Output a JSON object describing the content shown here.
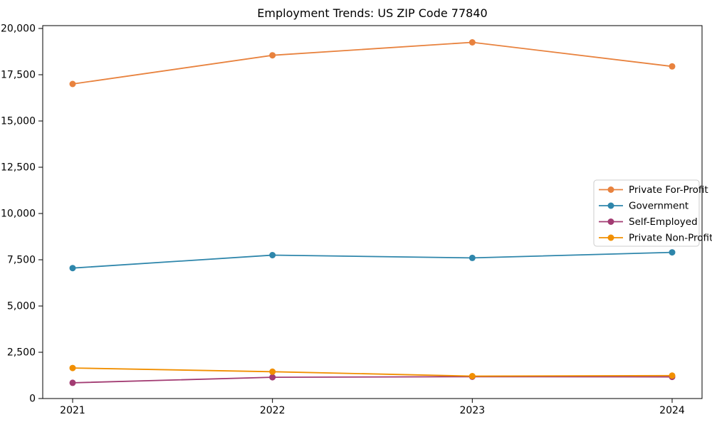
{
  "chart_data": {
    "type": "line",
    "title": "Employment Trends: US ZIP Code 77840",
    "x": [
      2021,
      2022,
      2023,
      2024
    ],
    "xtick_labels": [
      "2021",
      "2022",
      "2023",
      "2024"
    ],
    "yticks": [
      0,
      2500,
      5000,
      7500,
      10000,
      12500,
      15000,
      17500,
      20000
    ],
    "ytick_labels": [
      "0",
      "2,500",
      "5,000",
      "7,500",
      "10,000",
      "12,500",
      "15,000",
      "17,500",
      "20,000"
    ],
    "ylim": [
      0,
      20000
    ],
    "xlabel": "",
    "ylabel": "",
    "grid": false,
    "legend_position": "center right",
    "series": [
      {
        "name": "Private For-Profit",
        "color": "#E8823E",
        "values": [
          17000,
          18550,
          19250,
          17950
        ]
      },
      {
        "name": "Government",
        "color": "#2E86AB",
        "values": [
          7050,
          7750,
          7600,
          7900
        ]
      },
      {
        "name": "Self-Employed",
        "color": "#A23B72",
        "values": [
          850,
          1150,
          1180,
          1170
        ]
      },
      {
        "name": "Private Non-Profit",
        "color": "#F18F01",
        "values": [
          1650,
          1450,
          1210,
          1240
        ]
      }
    ],
    "axis_color": "#000000",
    "legend_border_color": "#cccccc",
    "legend_bg_color": "#ffffff"
  }
}
